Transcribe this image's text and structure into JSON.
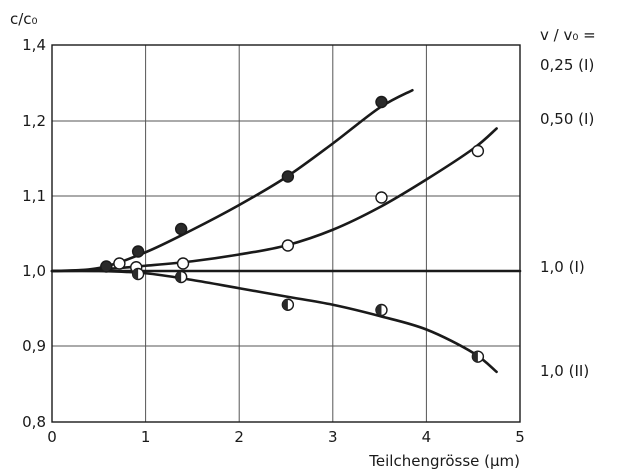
{
  "chart_data": {
    "type": "scatter",
    "xlabel": "Teilchengrösse (µm)",
    "ylabel": "c/c₀",
    "legend_title": "v / v₀ =",
    "xlim": [
      0,
      5
    ],
    "ylim": [
      0.8,
      1.4
    ],
    "x_ticks": [
      0,
      1,
      2,
      3,
      4,
      5
    ],
    "x_tick_labels": [
      "0",
      "1",
      "2",
      "3",
      "4",
      "5"
    ],
    "y_ticks": [
      0.8,
      0.9,
      1.0,
      1.1,
      1.2,
      1.4
    ],
    "y_tick_labels": [
      "0,8",
      "0,9",
      "1,0",
      "1,1",
      "1,2",
      "1,4"
    ],
    "grid": true,
    "series": [
      {
        "name": "0,25  (I)",
        "marker": "filled",
        "points": [
          [
            0.58,
            1.006
          ],
          [
            0.92,
            1.026
          ],
          [
            1.38,
            1.056
          ],
          [
            2.52,
            1.126
          ],
          [
            3.52,
            1.25
          ]
        ],
        "curve": [
          [
            0,
            1.0
          ],
          [
            0.5,
            1.004
          ],
          [
            1.0,
            1.025
          ],
          [
            1.5,
            1.055
          ],
          [
            2.0,
            1.088
          ],
          [
            2.5,
            1.125
          ],
          [
            3.0,
            1.17
          ],
          [
            3.5,
            1.235
          ],
          [
            3.85,
            1.281
          ]
        ]
      },
      {
        "name": "0,50  (I)",
        "marker": "open",
        "points": [
          [
            0.72,
            1.01
          ],
          [
            0.9,
            1.005
          ],
          [
            1.4,
            1.01
          ],
          [
            2.52,
            1.034
          ],
          [
            3.52,
            1.098
          ],
          [
            4.55,
            1.16
          ]
        ],
        "curve": [
          [
            0,
            1.0
          ],
          [
            0.5,
            1.002
          ],
          [
            1.0,
            1.007
          ],
          [
            1.5,
            1.013
          ],
          [
            2.0,
            1.022
          ],
          [
            2.5,
            1.034
          ],
          [
            3.0,
            1.055
          ],
          [
            3.5,
            1.085
          ],
          [
            4.0,
            1.122
          ],
          [
            4.5,
            1.163
          ],
          [
            4.75,
            1.19
          ]
        ]
      },
      {
        "name": "1,0      (I)",
        "marker": "none",
        "points": [],
        "curve": [
          [
            0,
            1.0
          ],
          [
            5,
            1.0
          ]
        ]
      },
      {
        "name": "1,0   (II)",
        "marker": "half",
        "points": [
          [
            0.92,
            0.996
          ],
          [
            1.38,
            0.992
          ],
          [
            2.52,
            0.955
          ],
          [
            3.52,
            0.948
          ],
          [
            4.55,
            0.886
          ]
        ],
        "curve": [
          [
            0,
            1.0
          ],
          [
            0.5,
            1.0
          ],
          [
            1.0,
            0.997
          ],
          [
            1.5,
            0.988
          ],
          [
            2.0,
            0.977
          ],
          [
            2.5,
            0.966
          ],
          [
            3.0,
            0.955
          ],
          [
            3.5,
            0.94
          ],
          [
            4.0,
            0.922
          ],
          [
            4.5,
            0.891
          ],
          [
            4.75,
            0.866
          ]
        ]
      }
    ]
  }
}
